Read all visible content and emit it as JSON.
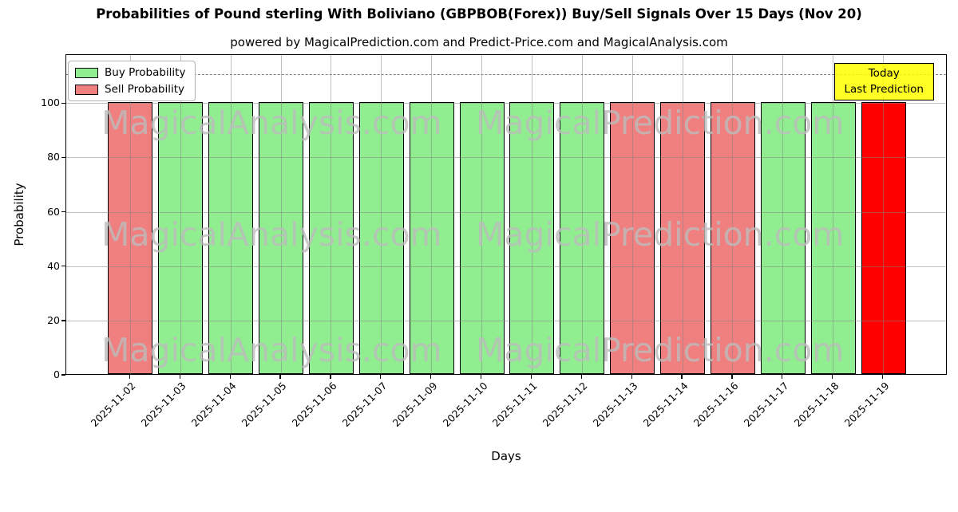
{
  "header": {
    "title": "Probabilities of Pound sterling With Boliviano (GBPBOB(Forex)) Buy/Sell Signals Over 15 Days (Nov 20)",
    "subtitle": "powered by MagicalPrediction.com and Predict-Price.com and MagicalAnalysis.com"
  },
  "legend": {
    "items": [
      {
        "label": "Buy Probability",
        "color": "#90ee90"
      },
      {
        "label": "Sell Probability",
        "color": "#f08080"
      }
    ]
  },
  "annotation": {
    "lines": [
      "Today",
      "Last Prediction"
    ],
    "bg_color": "#ffff00"
  },
  "axes": {
    "xlabel": "Days",
    "ylabel": "Probability",
    "yticks": [
      0,
      20,
      40,
      60,
      80,
      100
    ]
  },
  "watermarks": {
    "left_text": "MagicalAnalysis.com",
    "right_text": "MagicalPrediction.com",
    "rows": 3
  },
  "chart_data": {
    "type": "bar",
    "title": "Probabilities of Pound sterling With Boliviano (GBPBOB(Forex)) Buy/Sell Signals Over 15 Days (Nov 20)",
    "subtitle": "powered by MagicalPrediction.com and Predict-Price.com and MagicalAnalysis.com",
    "xlabel": "Days",
    "ylabel": "Probability",
    "ylim": [
      0,
      118
    ],
    "yticks": [
      0,
      20,
      40,
      60,
      80,
      100
    ],
    "grid": true,
    "legend_position": "upper left",
    "dashed_line_y": 111,
    "categories": [
      "2025-11-02",
      "2025-11-03",
      "2025-11-04",
      "2025-11-05",
      "2025-11-06",
      "2025-11-07",
      "2025-11-09",
      "2025-11-10",
      "2025-11-11",
      "2025-11-12",
      "2025-11-13",
      "2025-11-14",
      "2025-11-16",
      "2025-11-17",
      "2025-11-18",
      "2025-11-19"
    ],
    "values": [
      100,
      100,
      100,
      100,
      100,
      100,
      100,
      100,
      100,
      100,
      100,
      100,
      100,
      100,
      100,
      100
    ],
    "signals": [
      "sell",
      "buy",
      "buy",
      "buy",
      "buy",
      "buy",
      "buy",
      "buy",
      "buy",
      "buy",
      "sell",
      "sell",
      "sell",
      "buy",
      "buy",
      "today"
    ],
    "signal_colors": {
      "buy": "#90ee90",
      "sell": "#f08080",
      "today": "#ff0000"
    }
  }
}
